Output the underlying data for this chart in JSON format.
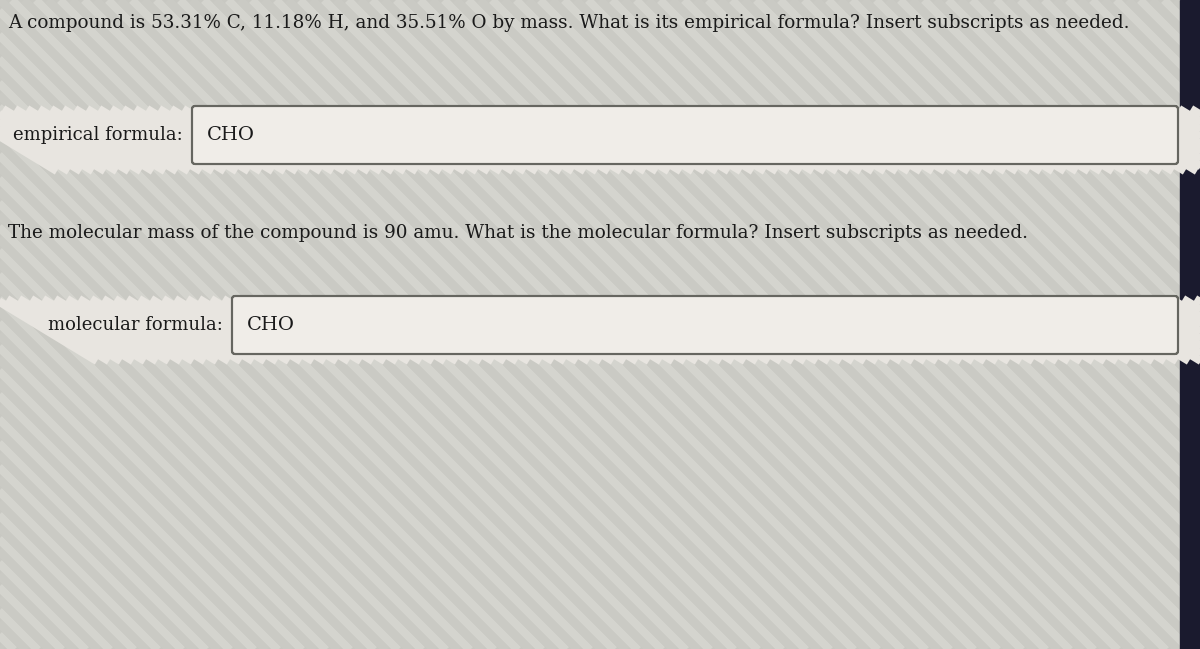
{
  "background_color": "#c8c8c2",
  "box_color": "#f0ede8",
  "text_color": "#1a1a1a",
  "border_color": "#666660",
  "question1": "A compound is 53.31% C, 11.18% H, and 35.51% O by mass. What is its empirical formula? Insert subscripts as needed.",
  "label1": "empirical formula:",
  "answer1": "CHO",
  "question2": "The molecular mass of the compound is 90 amu. What is the molecular formula? Insert subscripts as needed.",
  "label2": "molecular formula:",
  "answer2": "CHO",
  "fig_width": 12.0,
  "fig_height": 6.49,
  "font_size_question": 13.2,
  "font_size_label": 13.0,
  "font_size_answer": 14.0,
  "stripe_color1": "#c6c6c0",
  "stripe_color2": "#d2d2cc",
  "dark_col_color": "#1a1a2e"
}
